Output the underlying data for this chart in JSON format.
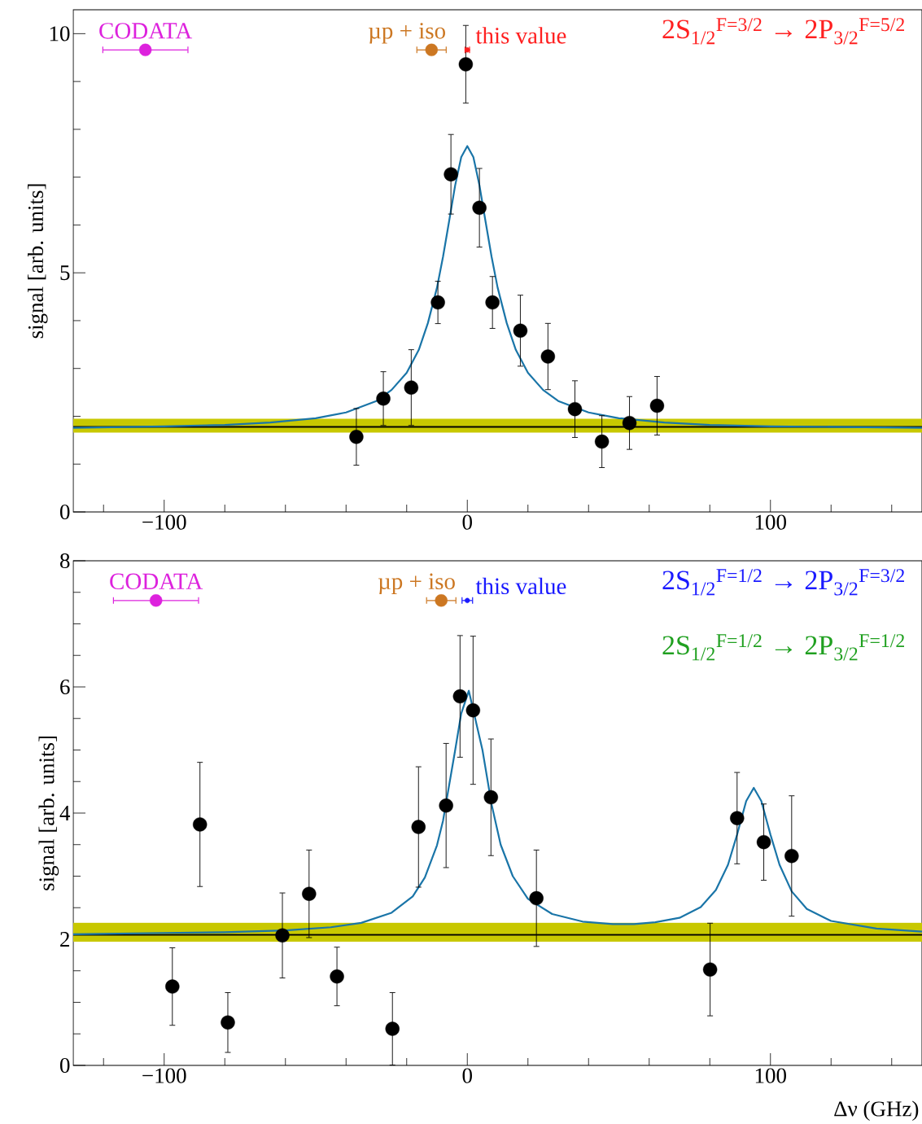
{
  "chart_data": [
    {
      "type": "scatter",
      "ylabel": "signal [arb. units]",
      "xlim": [
        -130,
        150
      ],
      "ylim": [
        0,
        10.5
      ],
      "xticks": [
        {
          "value": -120,
          "label": null
        },
        {
          "value": -100,
          "label": "−100"
        },
        {
          "value": -80,
          "label": null
        },
        {
          "value": -60,
          "label": null
        },
        {
          "value": -40,
          "label": null
        },
        {
          "value": -20,
          "label": null
        },
        0,
        {
          "value": 20,
          "label": null
        },
        {
          "value": 40,
          "label": null
        },
        {
          "value": 60,
          "label": null
        },
        {
          "value": 80,
          "label": null
        },
        100,
        {
          "value": 120,
          "label": null
        },
        {
          "value": 140,
          "label": null
        }
      ],
      "yticks": [
        0,
        {
          "value": 1,
          "label": null
        },
        {
          "value": 2,
          "label": null
        },
        {
          "value": 3,
          "label": null
        },
        {
          "value": 4,
          "label": null
        },
        5,
        {
          "value": 6,
          "label": null
        },
        {
          "value": 7,
          "label": null
        },
        {
          "value": 8,
          "label": null
        },
        {
          "value": 9,
          "label": null
        },
        10
      ],
      "series": [
        {
          "type": "line",
          "color": "#1a75a8",
          "marker": "none",
          "x": [
            -130,
            -100,
            -80,
            -65,
            -50,
            -40,
            -30,
            -25,
            -20,
            -16,
            -13,
            -10,
            -8,
            -6,
            -4,
            -2,
            0,
            2,
            4,
            6,
            8,
            10,
            13,
            16,
            20,
            25,
            30,
            40,
            50,
            65,
            80,
            100,
            150
          ],
          "values": [
            1.76,
            1.79,
            1.82,
            1.87,
            1.96,
            2.08,
            2.32,
            2.55,
            2.91,
            3.39,
            3.95,
            4.69,
            5.34,
            6.08,
            6.83,
            7.42,
            7.65,
            7.42,
            6.83,
            6.08,
            5.34,
            4.69,
            3.95,
            3.39,
            2.91,
            2.55,
            2.32,
            2.08,
            1.96,
            1.87,
            1.82,
            1.79,
            1.76
          ]
        },
        {
          "type": "scatter",
          "color": "#000000",
          "marker": "circle",
          "x": [
            -36.6,
            -27.7,
            -18.5,
            -9.7,
            -5.4,
            -0.5,
            4.0,
            8.3,
            17.5,
            26.6,
            35.5,
            44.4,
            53.5,
            62.6
          ],
          "values": [
            1.57,
            2.37,
            2.6,
            4.38,
            7.06,
            9.36,
            6.36,
            4.38,
            3.79,
            3.25,
            2.15,
            1.47,
            1.86,
            2.22
          ],
          "errors": [
            0.6,
            0.57,
            0.8,
            0.45,
            0.84,
            0.82,
            0.83,
            0.55,
            0.75,
            0.7,
            0.6,
            0.55,
            0.56,
            0.62
          ]
        },
        {
          "type": "scatter",
          "name": "CODATA",
          "color": "#dd22dd",
          "marker": "circle",
          "x": [
            -106.2
          ],
          "values": [
            9.66
          ],
          "xerrors": [
            14.2
          ]
        },
        {
          "type": "scatter",
          "name": "µp + iso",
          "color": "#cc7722",
          "marker": "circle",
          "x": [
            -11.8
          ],
          "values": [
            9.66
          ],
          "xerrors": [
            5
          ]
        },
        {
          "type": "scatter",
          "name": "this value",
          "color": "#ff2020",
          "marker": "circle",
          "x": [
            0
          ],
          "values": [
            9.66
          ],
          "xerrors": [
            0.9
          ]
        }
      ],
      "ref_lines": [
        {
          "axis": "y",
          "value": 1.78,
          "color": "#000000"
        }
      ],
      "bands": [
        {
          "axis": "y",
          "from": 1.66,
          "to": 1.95,
          "color": "#c8c800"
        }
      ],
      "annotations": [
        "2S$_{1/2}$$^{F=3/2}$ → 2P$_{3/2}$$^{F=5/2}$"
      ]
    },
    {
      "type": "scatter",
      "xlabel": "Δν (GHz)",
      "ylabel": "signal [arb. units]",
      "xlim": [
        -130,
        150
      ],
      "ylim": [
        0,
        8
      ],
      "xticks": [
        {
          "value": -120,
          "label": null
        },
        {
          "value": -100,
          "label": "−100"
        },
        {
          "value": -80,
          "label": null
        },
        {
          "value": -60,
          "label": null
        },
        {
          "value": -40,
          "label": null
        },
        {
          "value": -20,
          "label": null
        },
        0,
        {
          "value": 20,
          "label": null
        },
        {
          "value": 40,
          "label": null
        },
        {
          "value": 60,
          "label": null
        },
        {
          "value": 80,
          "label": null
        },
        100,
        {
          "value": 120,
          "label": null
        },
        {
          "value": 140,
          "label": null
        }
      ],
      "yticks": [
        0,
        {
          "value": 0.5,
          "label": null
        },
        {
          "value": 1,
          "label": null
        },
        {
          "value": 1.5,
          "label": null
        },
        2,
        {
          "value": 2.5,
          "label": null
        },
        {
          "value": 3,
          "label": null
        },
        {
          "value": 3.5,
          "label": null
        },
        4,
        {
          "value": 4.5,
          "label": null
        },
        {
          "value": 5,
          "label": null
        },
        {
          "value": 5.5,
          "label": null
        },
        6,
        {
          "value": 6.5,
          "label": null
        },
        {
          "value": 7,
          "label": null
        },
        {
          "value": 7.5,
          "label": null
        },
        8
      ],
      "series": [
        {
          "type": "line",
          "color": "#1a75a8",
          "marker": "none",
          "x": [
            -130,
            -100,
            -80,
            -60,
            -45,
            -35,
            -25,
            -18,
            -14,
            -10,
            -8,
            -4,
            -2,
            0.5,
            5,
            8,
            11,
            15,
            20,
            28,
            38,
            48,
            55,
            62,
            70,
            77,
            82,
            86,
            89,
            92,
            94.5,
            97,
            100,
            103,
            107,
            112,
            120,
            135,
            150
          ],
          "values": [
            2.08,
            2.1,
            2.11,
            2.14,
            2.19,
            2.26,
            2.42,
            2.68,
            2.98,
            3.49,
            3.88,
            5.0,
            5.58,
            5.94,
            5.0,
            4.14,
            3.5,
            3.0,
            2.64,
            2.4,
            2.28,
            2.24,
            2.24,
            2.27,
            2.34,
            2.51,
            2.78,
            3.18,
            3.66,
            4.19,
            4.4,
            4.19,
            3.66,
            3.18,
            2.76,
            2.48,
            2.29,
            2.17,
            2.12
          ]
        },
        {
          "type": "scatter",
          "color": "#000000",
          "marker": "circle",
          "x": [
            -97.3,
            -88.2,
            -79.0,
            -61.0,
            -52.2,
            -43.0,
            -24.7,
            -16.1,
            -7.0,
            -2.4,
            1.9,
            7.8,
            22.8,
            80.1,
            89.0,
            97.8,
            107.0
          ],
          "values": [
            1.25,
            3.82,
            0.68,
            2.06,
            2.72,
            1.41,
            0.58,
            3.78,
            4.12,
            5.85,
            5.63,
            4.25,
            2.65,
            1.52,
            3.92,
            3.54,
            3.32
          ],
          "errors": [
            0.62,
            0.99,
            0.48,
            0.68,
            0.7,
            0.47,
            0.58,
            0.96,
            0.99,
            0.97,
            1.18,
            0.93,
            0.77,
            0.74,
            0.73,
            0.61,
            0.96
          ]
        },
        {
          "type": "scatter",
          "name": "CODATA",
          "color": "#dd22dd",
          "marker": "circle",
          "x": [
            -102.7
          ],
          "values": [
            7.37
          ],
          "xerrors": [
            14.2
          ]
        },
        {
          "type": "scatter",
          "name": "µp + iso",
          "color": "#cc7722",
          "marker": "circle",
          "x": [
            -8.6
          ],
          "values": [
            7.37
          ],
          "xerrors": [
            5
          ]
        },
        {
          "type": "scatter",
          "name": "this value",
          "color": "#1a1aff",
          "marker": "circle",
          "x": [
            0
          ],
          "values": [
            7.37
          ],
          "xerrors": [
            1.9
          ]
        }
      ],
      "ref_lines": [
        {
          "axis": "y",
          "value": 2.07,
          "color": "#000000"
        }
      ],
      "bands": [
        {
          "axis": "y",
          "from": 1.96,
          "to": 2.26,
          "color": "#c8c800"
        }
      ],
      "annotations": [
        "2S$_{1/2}$$^{F=1/2}$ → 2P$_{3/2}$$^{F=3/2}$",
        "2S$_{1/2}$$^{F=1/2}$ → 2P$_{3/2}$$^{F=1/2}$"
      ]
    }
  ]
}
